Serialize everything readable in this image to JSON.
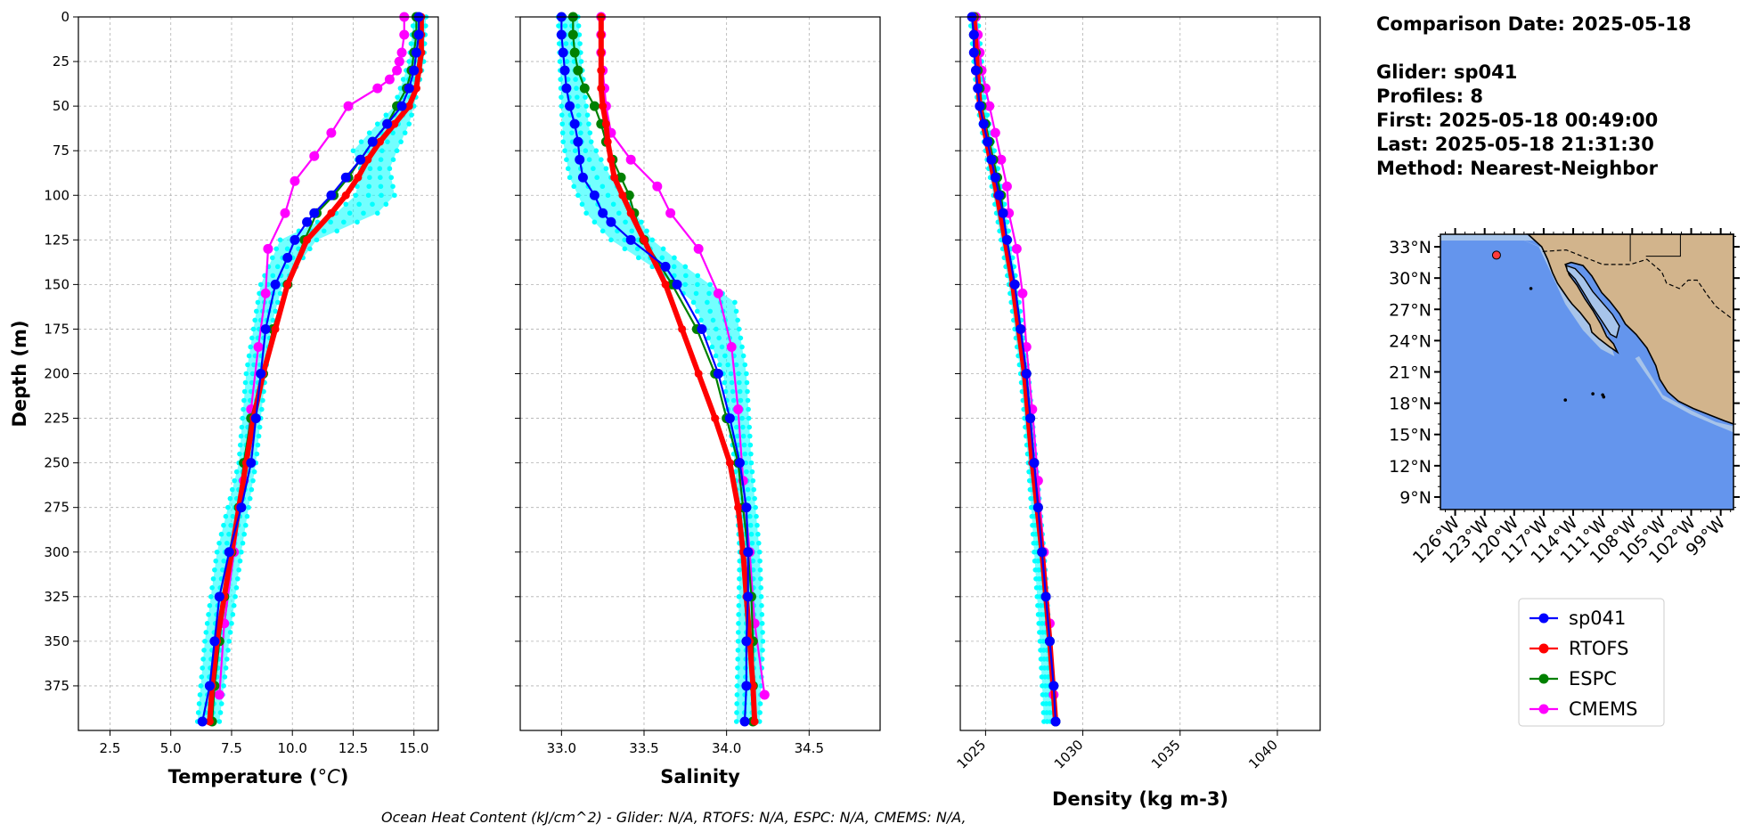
{
  "info": {
    "comparison_date": "Comparison Date: 2025-05-18",
    "glider": "Glider: sp041",
    "profiles": "Profiles: 8",
    "first": "First: 2025-05-18 00:49:00",
    "last": "Last: 2025-05-18 21:31:30",
    "method": "Method: Nearest-Neighbor"
  },
  "footer": "Ocean Heat Content (kJ/cm^2) - Glider: N/A,  RTOFS: N/A,  ESPC: N/A,  CMEMS: N/A,",
  "colors": {
    "sp041": "#0000ff",
    "RTOFS": "#ff0000",
    "ESPC": "#008000",
    "CMEMS": "#ff00ff",
    "raw": "#00ffff",
    "ocean": "#6495ed",
    "shelf": "#a7c4ea",
    "land": "#d2b48c"
  },
  "chart_data": [
    {
      "type": "line",
      "xlabel": "Temperature (°C)",
      "ylabel": "Depth (m)",
      "xlim": [
        1.2,
        16.0
      ],
      "ylim": [
        0,
        400
      ],
      "y_inverted": true,
      "xticks": [
        "2.5",
        "5.0",
        "7.5",
        "10.0",
        "12.5",
        "15.0"
      ],
      "yticks": [
        "0",
        "25",
        "50",
        "75",
        "100",
        "125",
        "150",
        "175",
        "200",
        "225",
        "250",
        "275",
        "300",
        "325",
        "350",
        "375"
      ],
      "grid": true,
      "raw_profiles": {
        "name": "sp041 profiles",
        "depth": [
          0,
          25,
          50,
          60,
          75,
          85,
          100,
          110,
          125,
          150,
          175,
          200,
          250,
          300,
          350,
          395
        ],
        "min": [
          15.0,
          14.8,
          14.2,
          13.5,
          12.5,
          12.8,
          12.6,
          11.8,
          9.5,
          8.7,
          8.4,
          8.1,
          7.8,
          6.9,
          6.4,
          6.1
        ],
        "max": [
          15.5,
          15.4,
          15.0,
          14.8,
          14.3,
          14.0,
          14.2,
          13.5,
          11.0,
          9.6,
          9.1,
          8.9,
          8.5,
          7.9,
          7.4,
          7.0
        ]
      },
      "series": [
        {
          "name": "sp041",
          "depth": [
            0,
            10,
            20,
            30,
            40,
            50,
            60,
            70,
            80,
            90,
            100,
            110,
            115,
            125,
            135,
            150,
            175,
            200,
            225,
            250,
            275,
            300,
            325,
            350,
            375,
            395
          ],
          "values": [
            15.2,
            15.2,
            15.1,
            15.0,
            14.8,
            14.5,
            13.9,
            13.3,
            12.8,
            12.2,
            11.6,
            10.9,
            10.6,
            10.1,
            9.8,
            9.3,
            8.9,
            8.7,
            8.5,
            8.3,
            7.9,
            7.4,
            7.0,
            6.8,
            6.6,
            6.3
          ]
        },
        {
          "name": "RTOFS",
          "depth": [
            0,
            10,
            20,
            30,
            40,
            50,
            60,
            70,
            80,
            90,
            100,
            110,
            125,
            150,
            175,
            200,
            225,
            250,
            275,
            300,
            325,
            350,
            375,
            395
          ],
          "values": [
            15.3,
            15.3,
            15.3,
            15.2,
            15.1,
            14.8,
            14.2,
            13.6,
            13.1,
            12.7,
            12.2,
            11.6,
            10.6,
            9.8,
            9.3,
            8.8,
            8.4,
            8.1,
            7.8,
            7.5,
            7.2,
            6.9,
            6.7,
            6.6
          ]
        },
        {
          "name": "ESPC",
          "depth": [
            0,
            10,
            20,
            30,
            40,
            50,
            60,
            70,
            80,
            90,
            100,
            110,
            125,
            150,
            175,
            200,
            225,
            250,
            275,
            300,
            325,
            350,
            375,
            395
          ],
          "values": [
            15.1,
            15.1,
            15.0,
            14.9,
            14.7,
            14.3,
            13.9,
            13.3,
            12.8,
            12.3,
            11.7,
            11.0,
            10.5,
            9.8,
            9.2,
            8.8,
            8.3,
            8.0,
            7.8,
            7.5,
            7.2,
            7.0,
            6.8,
            6.7
          ]
        },
        {
          "name": "CMEMS",
          "depth": [
            0,
            10,
            20,
            25,
            30,
            35,
            40,
            50,
            65,
            78,
            92,
            110,
            130,
            155,
            185,
            220,
            260,
            300,
            340,
            380
          ],
          "values": [
            14.6,
            14.6,
            14.5,
            14.4,
            14.3,
            14.0,
            13.5,
            12.3,
            11.6,
            10.9,
            10.1,
            9.7,
            9.0,
            8.9,
            8.6,
            8.3,
            8.0,
            7.6,
            7.2,
            7.0
          ]
        }
      ]
    },
    {
      "type": "line",
      "xlabel": "Salinity",
      "xlim": [
        32.75,
        34.93
      ],
      "ylim": [
        0,
        400
      ],
      "y_inverted": true,
      "xticks": [
        "33.0",
        "33.5",
        "34.0",
        "34.5"
      ],
      "grid": true,
      "raw_profiles": {
        "name": "sp041 profiles",
        "depth": [
          0,
          25,
          50,
          70,
          90,
          110,
          125,
          140,
          160,
          200,
          250,
          300,
          350,
          395
        ],
        "min": [
          32.98,
          32.99,
          33.0,
          33.01,
          33.05,
          33.15,
          33.3,
          33.55,
          33.8,
          33.98,
          34.05,
          34.08,
          34.07,
          34.06
        ],
        "max": [
          33.1,
          33.12,
          33.15,
          33.18,
          33.3,
          33.45,
          33.55,
          33.75,
          34.05,
          34.12,
          34.15,
          34.2,
          34.22,
          34.2
        ]
      },
      "series": [
        {
          "name": "sp041",
          "depth": [
            0,
            10,
            20,
            30,
            40,
            50,
            60,
            70,
            80,
            90,
            100,
            110,
            115,
            125,
            140,
            150,
            175,
            200,
            225,
            250,
            275,
            300,
            325,
            350,
            375,
            395
          ],
          "values": [
            33.0,
            33.0,
            33.01,
            33.02,
            33.03,
            33.05,
            33.08,
            33.1,
            33.11,
            33.13,
            33.2,
            33.25,
            33.3,
            33.42,
            33.63,
            33.7,
            33.85,
            33.95,
            34.02,
            34.08,
            34.12,
            34.13,
            34.13,
            34.12,
            34.12,
            34.11
          ]
        },
        {
          "name": "RTOFS",
          "depth": [
            0,
            10,
            20,
            30,
            40,
            50,
            60,
            70,
            80,
            90,
            100,
            110,
            125,
            150,
            175,
            200,
            225,
            250,
            275,
            300,
            325,
            350,
            375,
            395
          ],
          "values": [
            33.24,
            33.24,
            33.24,
            33.24,
            33.24,
            33.25,
            33.27,
            33.28,
            33.3,
            33.32,
            33.37,
            33.42,
            33.5,
            33.63,
            33.73,
            33.83,
            33.93,
            34.02,
            34.07,
            34.1,
            34.12,
            34.14,
            34.16,
            34.17
          ]
        },
        {
          "name": "ESPC",
          "depth": [
            0,
            10,
            20,
            30,
            40,
            50,
            60,
            70,
            80,
            90,
            100,
            110,
            125,
            150,
            175,
            200,
            225,
            250,
            275,
            300,
            325,
            350,
            375,
            395
          ],
          "values": [
            33.07,
            33.07,
            33.08,
            33.1,
            33.14,
            33.2,
            33.24,
            33.27,
            33.31,
            33.36,
            33.41,
            33.44,
            33.5,
            33.67,
            33.82,
            33.93,
            34.0,
            34.07,
            34.1,
            34.13,
            34.15,
            34.16,
            34.16,
            34.16
          ]
        },
        {
          "name": "CMEMS",
          "depth": [
            0,
            10,
            20,
            30,
            40,
            50,
            65,
            80,
            95,
            110,
            130,
            155,
            185,
            220,
            260,
            300,
            340,
            380
          ],
          "values": [
            33.24,
            33.24,
            33.24,
            33.25,
            33.26,
            33.27,
            33.3,
            33.42,
            33.58,
            33.66,
            33.83,
            33.95,
            34.03,
            34.07,
            34.1,
            34.14,
            34.17,
            34.23
          ]
        }
      ]
    },
    {
      "type": "line",
      "xlabel": "Density (kg m-3)",
      "xlim": [
        1023.7,
        1042.2
      ],
      "ylim": [
        0,
        400
      ],
      "y_inverted": true,
      "xticks": [
        "1025",
        "1030",
        "1035",
        "1040"
      ],
      "grid": true,
      "raw_profiles": {
        "name": "sp041 profiles",
        "depth": [
          0,
          50,
          100,
          150,
          200,
          250,
          300,
          350,
          395
        ],
        "min": [
          1024.2,
          1024.6,
          1025.4,
          1026.2,
          1026.8,
          1027.2,
          1027.5,
          1027.8,
          1028.0
        ],
        "max": [
          1024.6,
          1025.0,
          1025.9,
          1026.6,
          1027.2,
          1027.6,
          1028.0,
          1028.3,
          1028.5
        ]
      },
      "series": [
        {
          "name": "sp041",
          "depth": [
            0,
            10,
            20,
            30,
            40,
            50,
            60,
            70,
            80,
            90,
            100,
            110,
            125,
            150,
            175,
            200,
            225,
            250,
            275,
            300,
            325,
            350,
            375,
            395
          ],
          "values": [
            1024.3,
            1024.4,
            1024.4,
            1024.5,
            1024.6,
            1024.7,
            1024.9,
            1025.1,
            1025.3,
            1025.5,
            1025.7,
            1025.9,
            1026.1,
            1026.5,
            1026.8,
            1027.1,
            1027.3,
            1027.5,
            1027.7,
            1027.9,
            1028.1,
            1028.3,
            1028.5,
            1028.6
          ]
        },
        {
          "name": "RTOFS",
          "depth": [
            0,
            50,
            100,
            150,
            200,
            250,
            300,
            350,
            395
          ],
          "values": [
            1024.4,
            1024.7,
            1025.6,
            1026.4,
            1027.0,
            1027.4,
            1027.9,
            1028.3,
            1028.6
          ]
        },
        {
          "name": "ESPC",
          "depth": [
            0,
            10,
            20,
            30,
            40,
            50,
            60,
            70,
            80,
            90,
            100,
            110,
            125,
            150,
            175,
            200,
            225,
            250,
            275,
            300,
            325,
            350,
            375,
            395
          ],
          "values": [
            1024.4,
            1024.4,
            1024.5,
            1024.6,
            1024.7,
            1024.8,
            1025.0,
            1025.2,
            1025.4,
            1025.6,
            1025.8,
            1025.9,
            1026.1,
            1026.5,
            1026.8,
            1027.1,
            1027.3,
            1027.5,
            1027.7,
            1027.9,
            1028.1,
            1028.3,
            1028.5,
            1028.6
          ]
        },
        {
          "name": "CMEMS",
          "depth": [
            0,
            10,
            20,
            30,
            40,
            50,
            65,
            80,
            95,
            110,
            130,
            155,
            185,
            220,
            260,
            300,
            340,
            380
          ],
          "values": [
            1024.5,
            1024.6,
            1024.7,
            1024.8,
            1025.0,
            1025.2,
            1025.5,
            1025.8,
            1026.1,
            1026.2,
            1026.6,
            1026.9,
            1027.1,
            1027.4,
            1027.7,
            1028.0,
            1028.3,
            1028.5
          ]
        }
      ]
    }
  ],
  "map": {
    "lat_labels": [
      "33°N",
      "30°N",
      "27°N",
      "24°N",
      "21°N",
      "18°N",
      "15°N",
      "12°N",
      "9°N"
    ],
    "lon_labels": [
      "126°W",
      "123°W",
      "120°W",
      "117°W",
      "114°W",
      "111°W",
      "108°W",
      "105°W",
      "102°W",
      "99°W"
    ],
    "lon_range": [
      -127.5,
      -97.7
    ],
    "lat_range": [
      7.8,
      34.2
    ],
    "glider_position": {
      "lon": -121.8,
      "lat": 32.2
    }
  },
  "legend": [
    "sp041",
    "RTOFS",
    "ESPC",
    "CMEMS"
  ]
}
